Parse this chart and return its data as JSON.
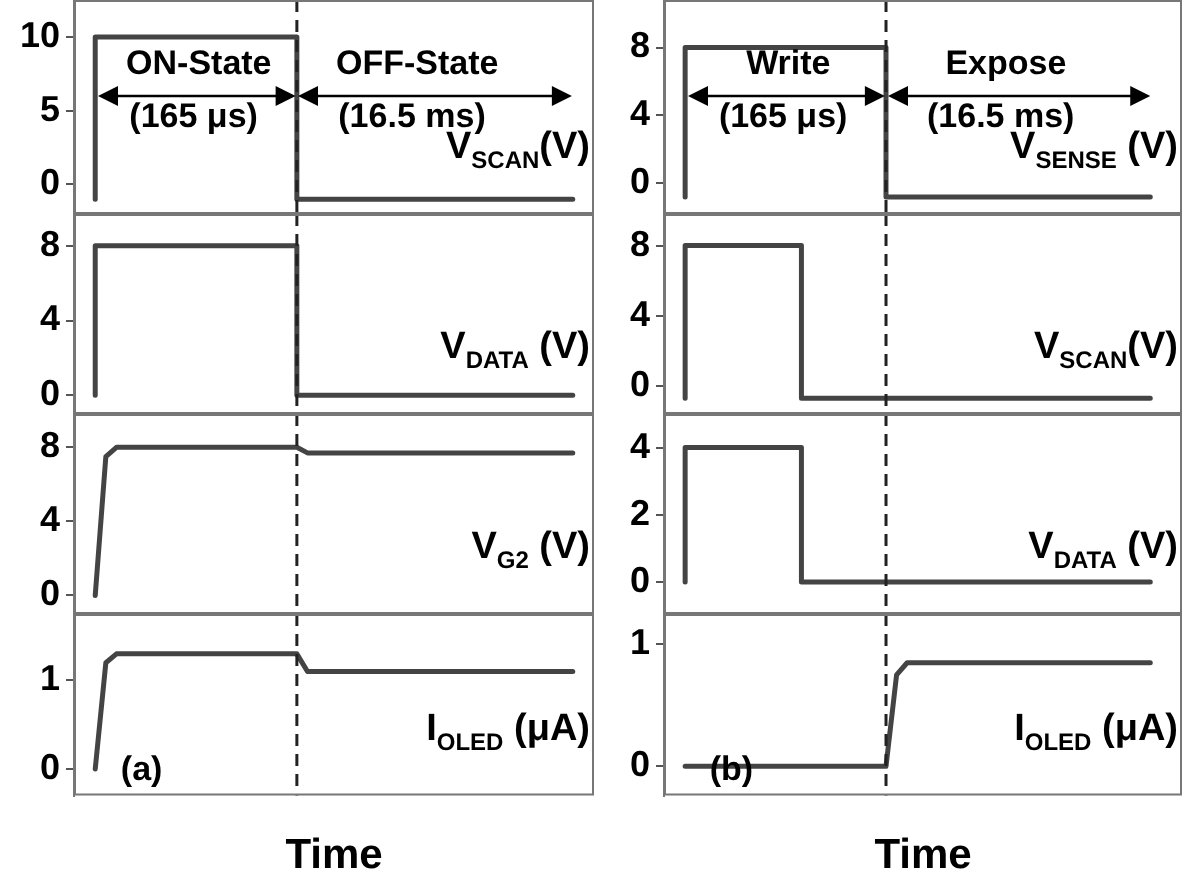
{
  "chart_data": [
    {
      "type": "step",
      "categories": [
        null,
        null,
        null,
        null,
        null,
        null,
        null,
        null,
        null,
        null,
        null,
        null,
        null,
        null,
        null,
        null,
        null,
        null,
        null,
        null,
        null,
        null,
        null,
        null,
        null,
        null,
        null,
        null,
        null,
        null,
        null,
        null,
        null,
        null,
        null,
        null,
        null,
        null,
        null,
        null,
        null,
        null,
        null,
        null,
        null,
        null,
        null,
        null,
        null,
        null
      ],
      "ylim": [
        -2,
        12.5
      ],
      "yticks": [
        0,
        5,
        10
      ],
      "tick_labels": "y",
      "annotations": [
        "ON-State",
        "(165 μs)",
        "OFF-State",
        "(16.5 ms)"
      ],
      "series": [
        {
          "name": "V$_{SCAN}$(V)",
          "color": "#444444",
          "values": [
            null,
            null,
            -1,
            10,
            10,
            10,
            10,
            10,
            10,
            10,
            10,
            10,
            10,
            10,
            10,
            10,
            10,
            10,
            10,
            10,
            10,
            10,
            -1,
            -1,
            -1,
            -1,
            -1,
            -1,
            -1,
            -1,
            -1,
            -1,
            -1,
            -1,
            -1,
            -1,
            -1,
            -1,
            -1,
            -1,
            -1,
            -1,
            -1,
            -1,
            -1,
            -1,
            -1,
            -1,
            null,
            null
          ]
        }
      ]
    },
    {
      "type": "step",
      "categories": [
        null,
        null,
        null,
        null,
        null,
        null,
        null,
        null,
        null,
        null,
        null,
        null,
        null,
        null,
        null,
        null,
        null,
        null,
        null,
        null,
        null,
        null,
        null,
        null,
        null,
        null,
        null,
        null,
        null,
        null,
        null,
        null,
        null,
        null,
        null,
        null,
        null,
        null,
        null,
        null,
        null,
        null,
        null,
        null,
        null,
        null,
        null,
        null,
        null,
        null
      ],
      "ylim": [
        -1.8,
        10.8
      ],
      "yticks": [
        0,
        4,
        8
      ],
      "tick_labels": "y",
      "annotations": [
        "Write",
        "(165 μs)",
        "Expose",
        "(16.5 ms)"
      ],
      "series": [
        {
          "name": "V$_{SENSE}$ (V)",
          "color": "#444444",
          "values": [
            null,
            null,
            -0.8,
            8,
            8,
            8,
            8,
            8,
            8,
            8,
            8,
            8,
            8,
            8,
            8,
            8,
            8,
            8,
            8,
            8,
            8,
            8,
            -0.8,
            -0.8,
            -0.8,
            -0.8,
            -0.8,
            -0.8,
            -0.8,
            -0.8,
            -0.8,
            -0.8,
            -0.8,
            -0.8,
            -0.8,
            -0.8,
            -0.8,
            -0.8,
            -0.8,
            -0.8,
            -0.8,
            -0.8,
            -0.8,
            -0.8,
            -0.8,
            -0.8,
            -0.8,
            null,
            null,
            null
          ]
        }
      ]
    },
    {
      "type": "step",
      "categories": [
        null,
        null,
        null,
        null,
        null,
        null,
        null,
        null,
        null,
        null,
        null,
        null,
        null,
        null,
        null,
        null,
        null,
        null,
        null,
        null,
        null,
        null,
        null,
        null,
        null,
        null,
        null,
        null,
        null,
        null,
        null,
        null,
        null,
        null,
        null,
        null,
        null,
        null,
        null,
        null,
        null,
        null,
        null,
        null,
        null,
        null,
        null,
        null,
        null,
        null
      ],
      "ylim": [
        -1,
        9.7
      ],
      "yticks": [
        0,
        4,
        8
      ],
      "tick_labels": "y",
      "series": [
        {
          "name": "V$_{DATA}$ (V)",
          "color": "#444444",
          "values": [
            null,
            null,
            0,
            8,
            8,
            8,
            8,
            8,
            8,
            8,
            8,
            8,
            8,
            8,
            8,
            8,
            8,
            8,
            8,
            8,
            8,
            8,
            0,
            0,
            0,
            0,
            0,
            0,
            0,
            0,
            0,
            0,
            0,
            0,
            0,
            0,
            0,
            0,
            0,
            0,
            0,
            0,
            0,
            0,
            0,
            0,
            0,
            0,
            null,
            null
          ]
        }
      ]
    },
    {
      "type": "step",
      "categories": [
        null,
        null,
        null,
        null,
        null,
        null,
        null,
        null,
        null,
        null,
        null,
        null,
        null,
        null,
        null,
        null,
        null,
        null,
        null,
        null,
        null,
        null,
        null,
        null,
        null,
        null,
        null,
        null,
        null,
        null,
        null,
        null,
        null,
        null,
        null,
        null,
        null,
        null,
        null,
        null,
        null,
        null,
        null,
        null,
        null,
        null,
        null,
        null,
        null,
        null
      ],
      "ylim": [
        -1.6,
        9.8
      ],
      "yticks": [
        0,
        4,
        8
      ],
      "tick_labels": "y",
      "series": [
        {
          "name": "V$_{SCAN}$(V)",
          "color": "#444444",
          "values": [
            null,
            null,
            -0.7,
            8,
            8,
            8,
            8,
            8,
            8,
            8,
            8,
            8,
            8,
            8,
            -0.7,
            -0.7,
            -0.7,
            -0.7,
            -0.7,
            -0.7,
            -0.7,
            -0.7,
            -0.7,
            -0.7,
            -0.7,
            -0.7,
            -0.7,
            -0.7,
            -0.7,
            -0.7,
            -0.7,
            -0.7,
            -0.7,
            -0.7,
            -0.7,
            -0.7,
            -0.7,
            -0.7,
            -0.7,
            -0.7,
            -0.7,
            -0.7,
            -0.7,
            -0.7,
            -0.7,
            -0.7,
            -0.7,
            null,
            null,
            null
          ]
        }
      ]
    },
    {
      "type": "line",
      "categories": [
        null,
        null,
        null,
        null,
        null,
        null,
        null,
        null,
        null,
        null,
        null,
        null,
        null,
        null,
        null,
        null,
        null,
        null,
        null,
        null,
        null,
        null,
        null,
        null,
        null,
        null,
        null,
        null,
        null,
        null,
        null,
        null,
        null,
        null,
        null,
        null,
        null,
        null,
        null,
        null,
        null,
        null,
        null,
        null,
        null,
        null,
        null,
        null,
        null,
        null
      ],
      "ylim": [
        -1,
        9.8
      ],
      "yticks": [
        0,
        4,
        8
      ],
      "tick_labels": "y",
      "series": [
        {
          "name": "V$_{G2}$ (V)",
          "color": "#444444",
          "values": [
            null,
            null,
            0,
            7.5,
            8,
            8,
            8,
            8,
            8,
            8,
            8,
            8,
            8,
            8,
            8,
            8,
            8,
            8,
            8,
            8,
            8,
            8,
            7.7,
            7.7,
            7.7,
            7.7,
            7.7,
            7.7,
            7.7,
            7.7,
            7.7,
            7.7,
            7.7,
            7.7,
            7.7,
            7.7,
            7.7,
            7.7,
            7.7,
            7.7,
            7.7,
            7.7,
            7.7,
            7.7,
            7.7,
            7.7,
            7.7,
            7.7,
            null,
            null
          ]
        }
      ]
    },
    {
      "type": "step",
      "categories": [
        null,
        null,
        null,
        null,
        null,
        null,
        null,
        null,
        null,
        null,
        null,
        null,
        null,
        null,
        null,
        null,
        null,
        null,
        null,
        null,
        null,
        null,
        null,
        null,
        null,
        null,
        null,
        null,
        null,
        null,
        null,
        null,
        null,
        null,
        null,
        null,
        null,
        null,
        null,
        null,
        null,
        null,
        null,
        null,
        null,
        null,
        null,
        null,
        null,
        null
      ],
      "ylim": [
        -0.95,
        5
      ],
      "yticks": [
        0,
        2,
        4
      ],
      "tick_labels": "y",
      "series": [
        {
          "name": "V$_{DATA}$ (V)",
          "color": "#444444",
          "values": [
            null,
            null,
            0,
            4,
            4,
            4,
            4,
            4,
            4,
            4,
            4,
            4,
            4,
            4,
            0,
            0,
            0,
            0,
            0,
            0,
            0,
            0,
            0,
            0,
            0,
            0,
            0,
            0,
            0,
            0,
            0,
            0,
            0,
            0,
            0,
            0,
            0,
            0,
            0,
            0,
            0,
            0,
            0,
            0,
            0,
            0,
            0,
            null,
            null,
            null
          ]
        }
      ]
    },
    {
      "type": "line",
      "categories": [
        null,
        null,
        null,
        null,
        null,
        null,
        null,
        null,
        null,
        null,
        null,
        null,
        null,
        null,
        null,
        null,
        null,
        null,
        null,
        null,
        null,
        null,
        null,
        null,
        null,
        null,
        null,
        null,
        null,
        null,
        null,
        null,
        null,
        null,
        null,
        null,
        null,
        null,
        null,
        null,
        null,
        null,
        null,
        null,
        null,
        null,
        null,
        null,
        null,
        null
      ],
      "ylim": [
        -0.3,
        1.75
      ],
      "yticks": [
        0,
        1
      ],
      "tick_labels": "y",
      "xlabel": "Time",
      "annotations": [
        "(a)"
      ],
      "series": [
        {
          "name": "I$_{OLED}$ (μA)",
          "color": "#444444",
          "values": [
            null,
            null,
            0,
            1.2,
            1.3,
            1.3,
            1.3,
            1.3,
            1.3,
            1.3,
            1.3,
            1.3,
            1.3,
            1.3,
            1.3,
            1.3,
            1.3,
            1.3,
            1.3,
            1.3,
            1.3,
            1.3,
            1.1,
            1.1,
            1.1,
            1.1,
            1.1,
            1.1,
            1.1,
            1.1,
            1.1,
            1.1,
            1.1,
            1.1,
            1.1,
            1.1,
            1.1,
            1.1,
            1.1,
            1.1,
            1.1,
            1.1,
            1.1,
            1.1,
            1.1,
            1.1,
            1.1,
            1.1,
            null,
            null
          ]
        }
      ]
    },
    {
      "type": "line",
      "categories": [
        null,
        null,
        null,
        null,
        null,
        null,
        null,
        null,
        null,
        null,
        null,
        null,
        null,
        null,
        null,
        null,
        null,
        null,
        null,
        null,
        null,
        null,
        null,
        null,
        null,
        null,
        null,
        null,
        null,
        null,
        null,
        null,
        null,
        null,
        null,
        null,
        null,
        null,
        null,
        null,
        null,
        null,
        null,
        null,
        null,
        null,
        null,
        null,
        null,
        null
      ],
      "ylim": [
        -0.24,
        1.25
      ],
      "yticks": [
        0,
        1
      ],
      "tick_labels": "y",
      "xlabel": "Time",
      "annotations": [
        "(b)"
      ],
      "series": [
        {
          "name": "I$_{OLED}$ (μA)",
          "color": "#444444",
          "values": [
            null,
            null,
            0,
            0,
            0,
            0,
            0,
            0,
            0,
            0,
            0,
            0,
            0,
            0,
            0,
            0,
            0,
            0,
            0,
            0,
            0,
            0,
            0.75,
            0.85,
            0.85,
            0.85,
            0.85,
            0.85,
            0.85,
            0.85,
            0.85,
            0.85,
            0.85,
            0.85,
            0.85,
            0.85,
            0.85,
            0.85,
            0.85,
            0.85,
            0.85,
            0.85,
            0.85,
            0.85,
            0.85,
            0.85,
            0.85,
            null,
            null,
            null
          ]
        }
      ]
    }
  ]
}
